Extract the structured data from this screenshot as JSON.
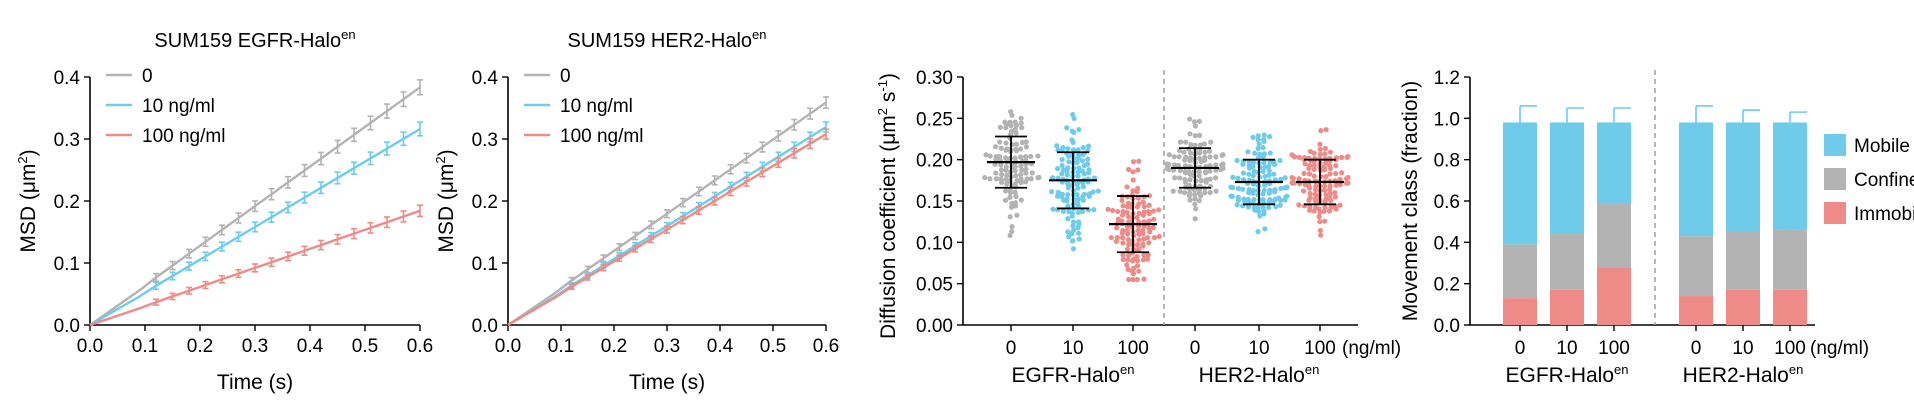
{
  "colors": {
    "gray": "#b3b3b3",
    "blue": "#6ecbe9",
    "red": "#ee8b86",
    "axis": "#000000",
    "divider": "#9a9a9a"
  },
  "chart_data": [
    {
      "type": "line",
      "title": "SUM159 EGFR-Halo",
      "title_sup": "en",
      "xlabel": "Time (s)",
      "ylabel": "MSD (μm",
      "ylabel_sup": "2",
      "ylabel_end": ")",
      "xlim": [
        0,
        0.6
      ],
      "ylim": [
        0,
        0.4
      ],
      "xticks": [
        "0.0",
        "0.1",
        "0.2",
        "0.3",
        "0.4",
        "0.5",
        "0.6"
      ],
      "yticks": [
        "0.0",
        "0.1",
        "0.2",
        "0.3",
        "0.4"
      ],
      "legend": [
        "0",
        "10 ng/ml",
        "100 ng/ml"
      ],
      "series": [
        {
          "name": "0",
          "color": "gray",
          "slope": 0.639,
          "err": 0.012
        },
        {
          "name": "10 ng/ml",
          "color": "blue",
          "slope": 0.527,
          "err": 0.011
        },
        {
          "name": "100 ng/ml",
          "color": "red",
          "slope": 0.307,
          "err": 0.009
        }
      ]
    },
    {
      "type": "line",
      "title": "SUM159 HER2-Halo",
      "title_sup": "en",
      "xlabel": "Time (s)",
      "ylabel": "MSD (μm",
      "ylabel_sup": "2",
      "ylabel_end": ")",
      "xlim": [
        0,
        0.6
      ],
      "ylim": [
        0,
        0.4
      ],
      "xticks": [
        "0.0",
        "0.1",
        "0.2",
        "0.3",
        "0.4",
        "0.5",
        "0.6"
      ],
      "yticks": [
        "0.0",
        "0.1",
        "0.2",
        "0.3",
        "0.4"
      ],
      "legend": [
        "0",
        "10 ng/ml",
        "100 ng/ml"
      ],
      "series": [
        {
          "name": "0",
          "color": "gray",
          "slope": 0.598,
          "err": 0.009
        },
        {
          "name": "10 ng/ml",
          "color": "blue",
          "slope": 0.532,
          "err": 0.008
        },
        {
          "name": "100 ng/ml",
          "color": "red",
          "slope": 0.513,
          "err": 0.008
        }
      ]
    },
    {
      "type": "scatter",
      "ylabel": "Diffusion coefficient (μm",
      "ylabel_sup": "2",
      "ylabel_mid": " s",
      "ylabel_sup2": "-1",
      "ylabel_end": ")",
      "ylim": [
        0,
        0.3
      ],
      "yticks": [
        "0.00",
        "0.05",
        "0.10",
        "0.15",
        "0.20",
        "0.25",
        "0.30"
      ],
      "categories": [
        "0",
        "10",
        "100",
        "0",
        "10",
        "100"
      ],
      "unit": "(ng/ml)",
      "groups": [
        {
          "label": "EGFR-Halo",
          "sup": "en"
        },
        {
          "label": "HER2-Halo",
          "sup": "en"
        }
      ],
      "series": [
        {
          "color": "gray",
          "mean": 0.197,
          "sd": 0.031,
          "n": 110
        },
        {
          "color": "blue",
          "mean": 0.175,
          "sd": 0.034,
          "n": 120
        },
        {
          "color": "red",
          "mean": 0.122,
          "sd": 0.034,
          "n": 120
        },
        {
          "color": "gray",
          "mean": 0.19,
          "sd": 0.024,
          "n": 110
        },
        {
          "color": "blue",
          "mean": 0.173,
          "sd": 0.027,
          "n": 120
        },
        {
          "color": "red",
          "mean": 0.173,
          "sd": 0.027,
          "n": 120
        }
      ]
    },
    {
      "type": "bar",
      "stacked": true,
      "ylabel": "Movement class (fraction)",
      "ylim": [
        0,
        1.2
      ],
      "yticks": [
        "0.0",
        "0.2",
        "0.4",
        "0.6",
        "0.8",
        "1.0",
        "1.2"
      ],
      "categories": [
        "0",
        "10",
        "100",
        "0",
        "10",
        "100"
      ],
      "unit": "(ng/ml)",
      "groups": [
        {
          "label": "EGFR-Halo",
          "sup": "en"
        },
        {
          "label": "HER2-Halo",
          "sup": "en"
        }
      ],
      "legend": [
        "Mobile",
        "Confined",
        "Immobile"
      ],
      "series": [
        {
          "name": "Immobile",
          "color": "red",
          "values": [
            0.13,
            0.17,
            0.28,
            0.14,
            0.17,
            0.17
          ],
          "err": [
            0.01,
            0.01,
            0.04,
            0.01,
            0.01,
            0.01
          ]
        },
        {
          "name": "Confined",
          "color": "gray",
          "values": [
            0.26,
            0.27,
            0.31,
            0.29,
            0.28,
            0.29
          ],
          "err": [
            0.06,
            0.05,
            0.05,
            0.05,
            0.04,
            0.04
          ]
        },
        {
          "name": "Mobile",
          "color": "blue",
          "values": [
            0.59,
            0.54,
            0.39,
            0.55,
            0.53,
            0.52
          ],
          "err": [
            0.08,
            0.07,
            0.07,
            0.08,
            0.06,
            0.05
          ]
        }
      ]
    }
  ]
}
